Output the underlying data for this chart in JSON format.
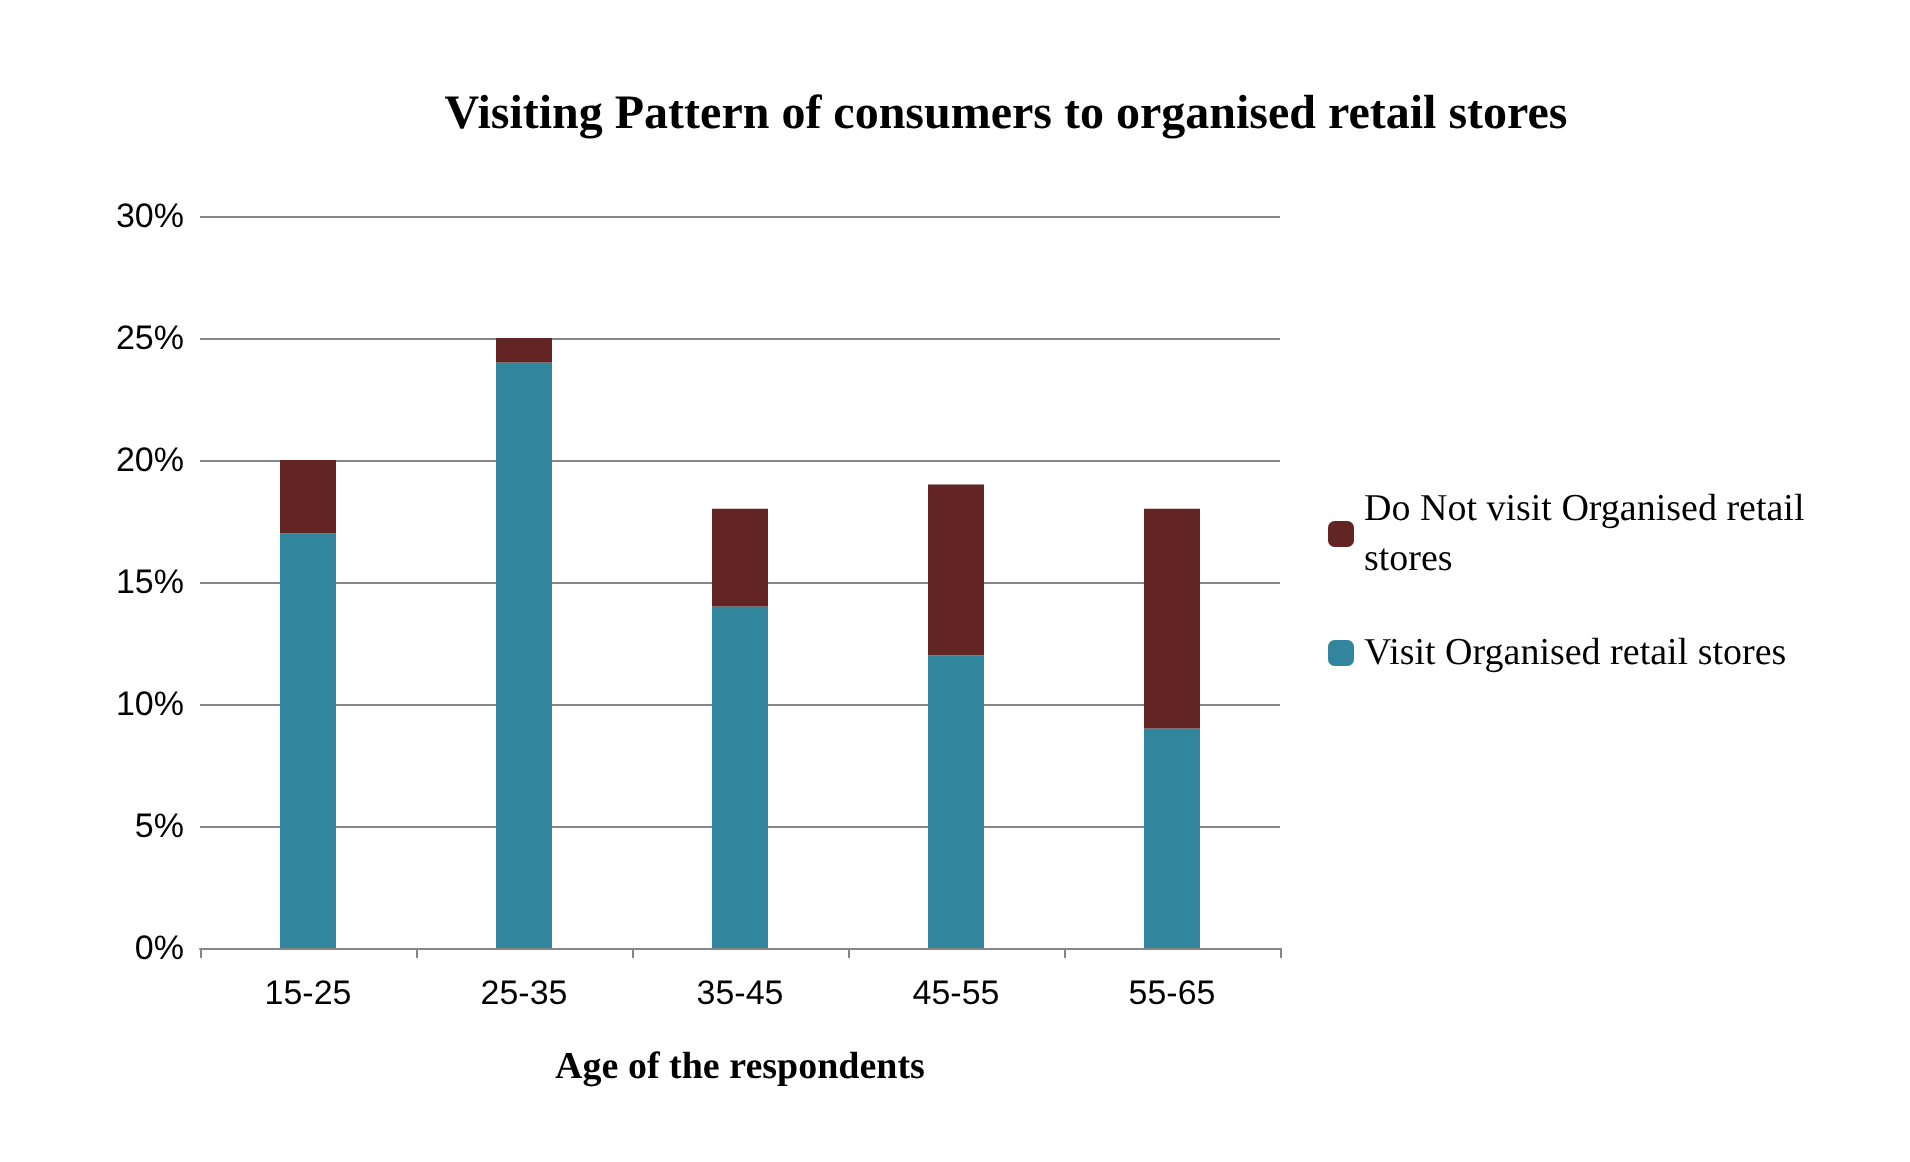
{
  "chart_data": {
    "type": "bar",
    "title": "Visiting Pattern of consumers to organised retail stores",
    "xlabel": "Age of the respondents",
    "categories": [
      "15-25",
      "25-35",
      "35-45",
      "45-55",
      "55-65"
    ],
    "stacked": true,
    "series": [
      {
        "name": "Visit Organised retail stores",
        "color": "#31859c",
        "values": [
          17,
          24,
          14,
          12,
          9
        ]
      },
      {
        "name": "Do Not visit Organised retail stores",
        "color": "#632523",
        "values": [
          3,
          1,
          4,
          7,
          9
        ]
      }
    ],
    "ylim": [
      0,
      30
    ],
    "yticks": [
      {
        "value": 0,
        "label": "0%"
      },
      {
        "value": 5,
        "label": "5%"
      },
      {
        "value": 10,
        "label": "10%"
      },
      {
        "value": 15,
        "label": "15%"
      },
      {
        "value": 20,
        "label": "20%"
      },
      {
        "value": 25,
        "label": "25%"
      },
      {
        "value": 30,
        "label": "30%"
      }
    ],
    "grid": "y",
    "legend": "right"
  }
}
